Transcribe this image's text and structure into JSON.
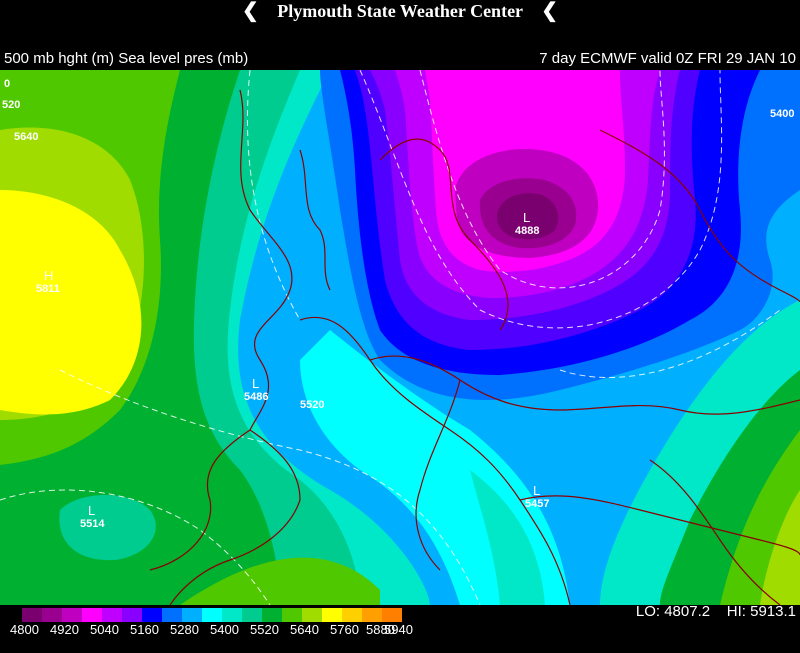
{
  "header": {
    "station": "Plymouth State Weather Center",
    "left_label": "500 mb hght (m) Sea level pres (mb)",
    "right_label": "7 day ECMWF valid 0Z FRI 29 JAN 10"
  },
  "colors": {
    "c4800": "#7a0070",
    "c4860": "#9a0090",
    "c4920": "#c000c0",
    "c4980": "#ff00ff",
    "c5040": "#c000ff",
    "c5100": "#8a00ff",
    "c5160": "#5000ff",
    "c5220": "#0000ff",
    "c5280": "#0070ff",
    "c5340": "#00b0ff",
    "c5400": "#00ffff",
    "c5460": "#00e8c8",
    "c5520": "#00cc90",
    "c5580": "#00b030",
    "c5640": "#50c800",
    "c5700": "#a0dc00",
    "c5760": "#ffff00"
  },
  "map_labels": {
    "l_north": "L",
    "v_north": "4888",
    "h_west": "H",
    "v_west": "5811",
    "l_spain": "L",
    "v_spain": "5486",
    "l_atl": "L",
    "v_atl": "5514",
    "l_greece": "L",
    "v_greece": "5457",
    "c5640": "5640",
    "c5520": "5520",
    "c5400": "5400",
    "c520": "520",
    "c0": "0"
  },
  "legend": {
    "ticks": [
      "4800",
      "4920",
      "5040",
      "5160",
      "5280",
      "5400",
      "5520",
      "5640",
      "5760",
      "5880",
      "5940"
    ],
    "lo": "LO: 4807.2",
    "hi": "HI: 5913.1"
  }
}
